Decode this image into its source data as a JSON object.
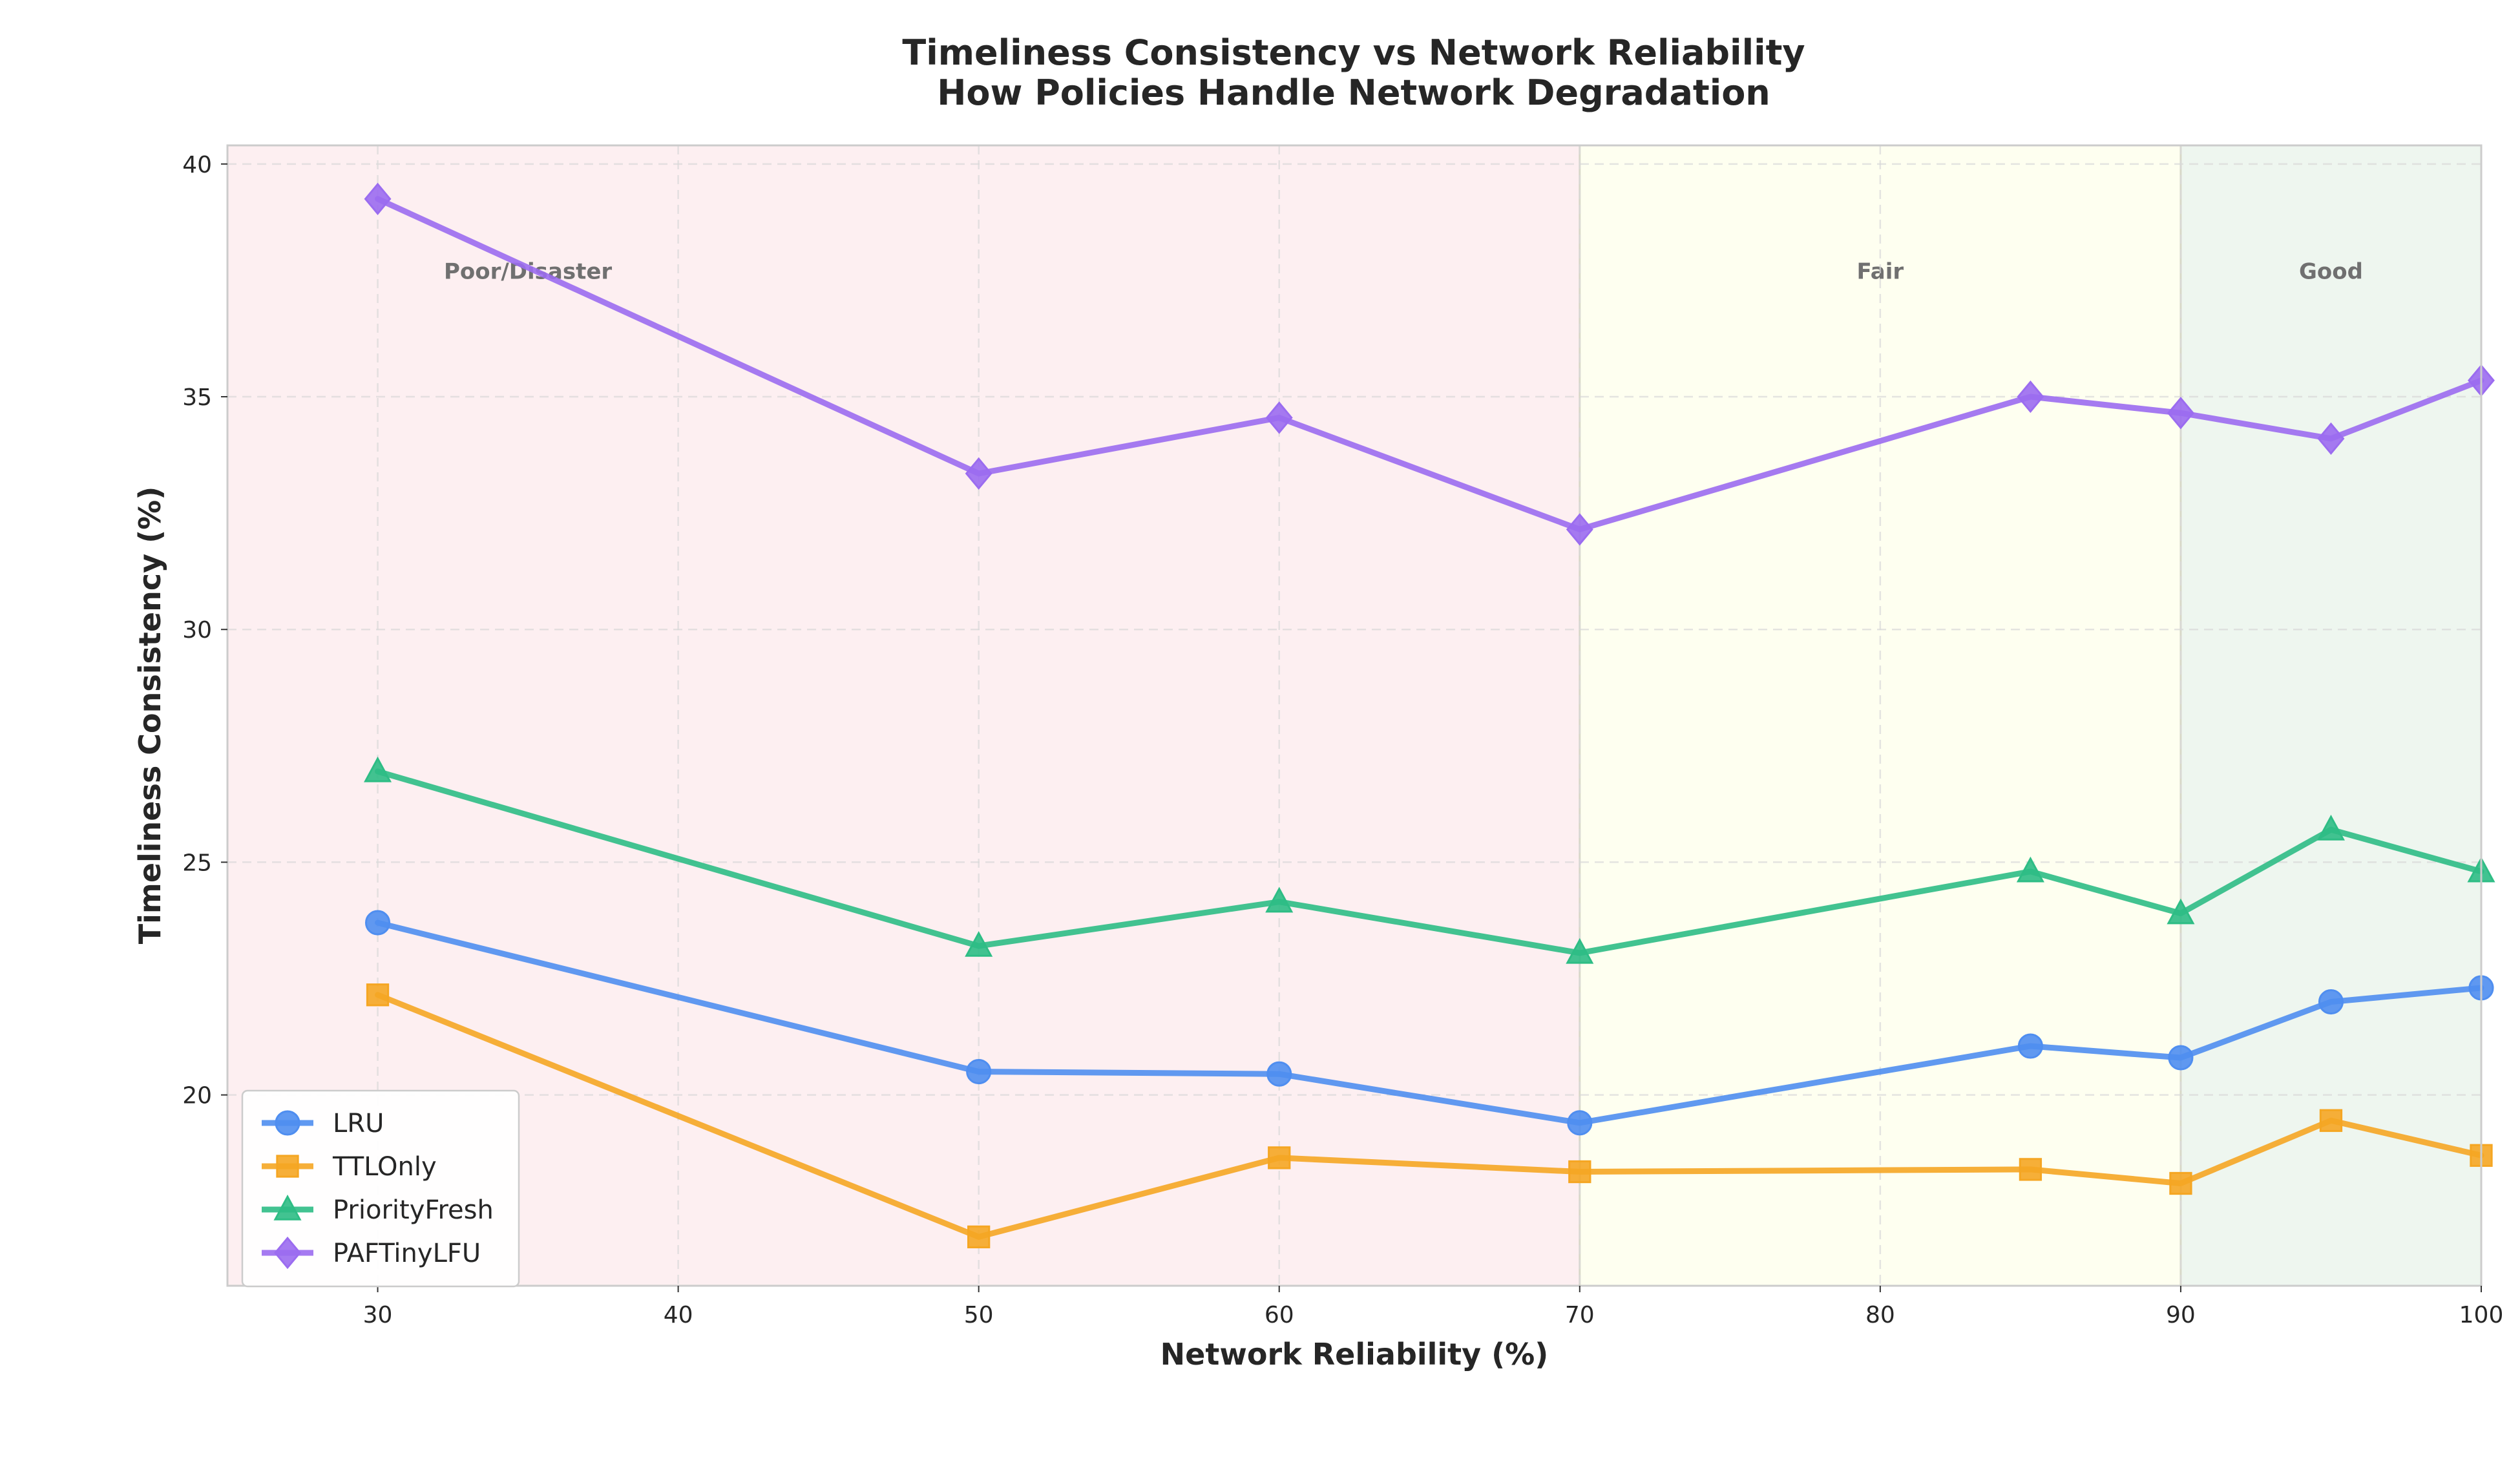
{
  "chart_data": {
    "type": "line",
    "title": "Timeliness Consistency vs Network Reliability",
    "subtitle": "How Policies Handle Network Degradation",
    "xlabel": "Network Reliability (%)",
    "ylabel": "Timeliness Consistency (%)",
    "xlim": [
      25,
      100
    ],
    "ylim": [
      15.9,
      40.4
    ],
    "xticks": [
      30,
      40,
      50,
      60,
      70,
      80,
      90,
      100
    ],
    "yticks": [
      20,
      25,
      30,
      35,
      40
    ],
    "grid": true,
    "legend_position": "lower-left",
    "zones": [
      {
        "label": "Poor/Disaster",
        "x_start": 25,
        "x_end": 70,
        "color": "#fdeff1",
        "label_x": 35
      },
      {
        "label": "Fair",
        "x_start": 70,
        "x_end": 90,
        "color": "#fefff0",
        "label_x": 80
      },
      {
        "label": "Good",
        "x_start": 90,
        "x_end": 100,
        "color": "#eef6ef",
        "label_x": 95
      }
    ],
    "zone_label_y": 37.7,
    "x": [
      30,
      50,
      60,
      70,
      85,
      90,
      95,
      100
    ],
    "series": [
      {
        "name": "LRU",
        "marker": "circle",
        "color": "#4f8ef0",
        "values": [
          23.7,
          20.5,
          20.45,
          19.4,
          21.05,
          20.8,
          22.0,
          22.3
        ]
      },
      {
        "name": "TTLOnly",
        "marker": "square",
        "color": "#f5a623",
        "values": [
          22.15,
          16.95,
          18.65,
          18.35,
          18.4,
          18.1,
          19.45,
          18.7
        ]
      },
      {
        "name": "PriorityFresh",
        "marker": "triangle",
        "color": "#2ebd85",
        "values": [
          26.95,
          23.2,
          24.15,
          23.05,
          24.8,
          23.9,
          25.7,
          24.8
        ]
      },
      {
        "name": "PAFTinyLFU",
        "marker": "diamond",
        "color": "#9b6cf0",
        "values": [
          39.25,
          33.35,
          34.55,
          32.15,
          35.0,
          34.65,
          34.1,
          35.35
        ]
      }
    ]
  }
}
